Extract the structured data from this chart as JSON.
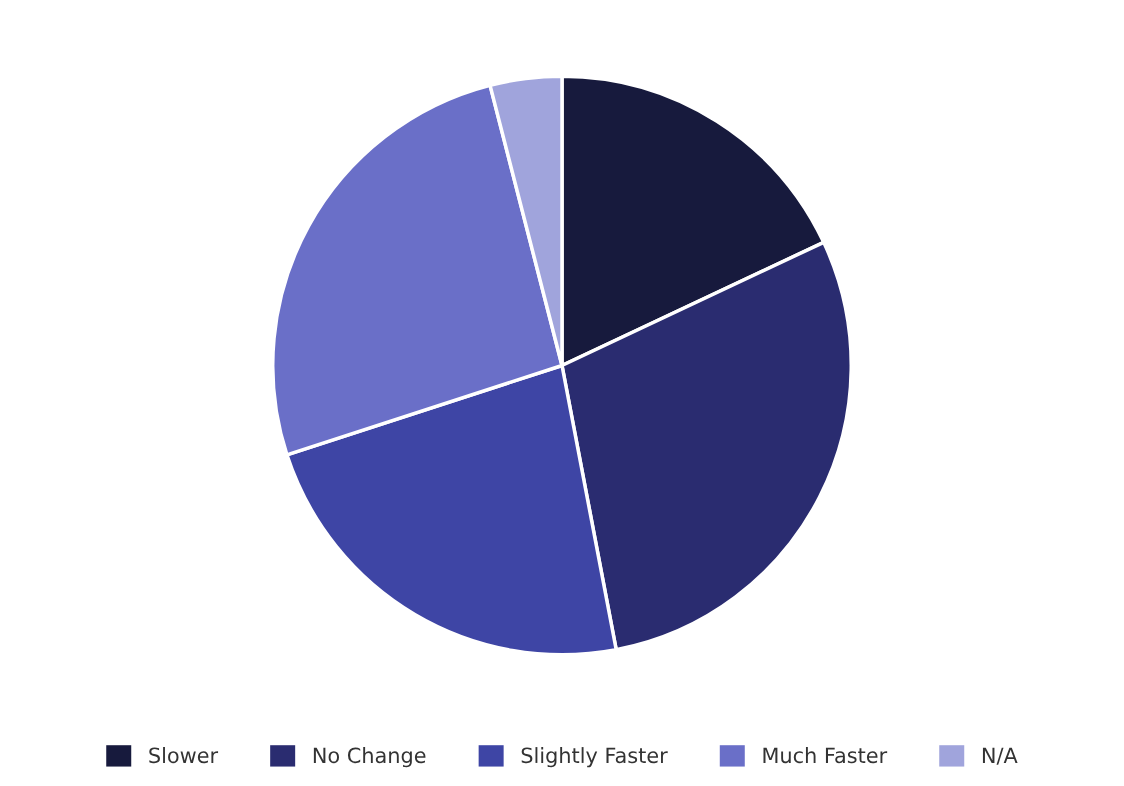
{
  "chart_data": {
    "type": "pie",
    "categories": [
      "Slower",
      "No Change",
      "Slightly Faster",
      "Much Faster",
      "N/A"
    ],
    "values": [
      18,
      29,
      23,
      26,
      4
    ],
    "colors": [
      "#171a3d",
      "#2a2c70",
      "#3e45a5",
      "#6a6fc8",
      "#a0a4dc"
    ],
    "legend": "bottom"
  }
}
